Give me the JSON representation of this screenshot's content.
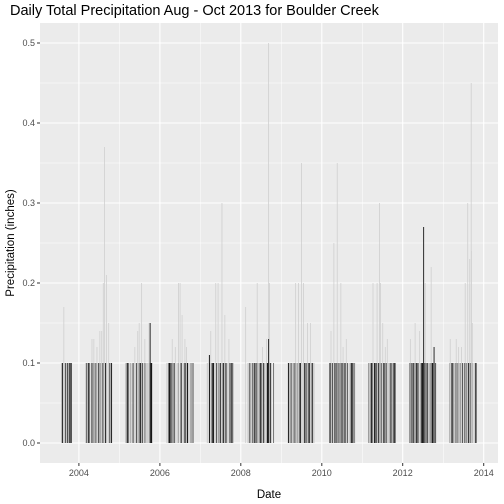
{
  "chart_data": {
    "type": "bar",
    "title": "Daily Total Precipitation Aug - Oct 2013 for Boulder Creek",
    "xlabel": "Date",
    "ylabel": "Precipitation (inches)",
    "xlim": [
      "2003-01-15",
      "2014-05-10"
    ],
    "ylim": [
      -0.025,
      0.525
    ],
    "x_ticks": [
      "2004",
      "2006",
      "2008",
      "2010",
      "2012",
      "2014"
    ],
    "y_ticks": [
      "0.0",
      "0.1",
      "0.2",
      "0.3",
      "0.4",
      "0.5"
    ],
    "grid": true,
    "legend": "none",
    "colors": {
      "panel": "#ebebeb",
      "grid_major": "#ffffff",
      "bar_dark": "#1a1a1a",
      "bar_light": "#cfcfcf"
    },
    "x": [
      "2003-08-18",
      "2003-08-25",
      "2003-09-10",
      "2004-03-20",
      "2004-04-28",
      "2004-05-15",
      "2004-06-12",
      "2004-07-08",
      "2004-07-25",
      "2004-08-08",
      "2004-08-20",
      "2004-09-05",
      "2004-09-26",
      "2004-10-08",
      "2005-04-12",
      "2005-05-20",
      "2005-06-15",
      "2005-06-28",
      "2005-07-20",
      "2005-08-18",
      "2005-09-08",
      "2005-09-25",
      "2005-10-02",
      "2006-03-15",
      "2006-04-22",
      "2006-05-20",
      "2006-06-18",
      "2006-07-02",
      "2006-07-20",
      "2006-08-15",
      "2006-08-28",
      "2006-09-18",
      "2007-03-18",
      "2007-04-05",
      "2007-05-20",
      "2007-06-10",
      "2007-07-15",
      "2007-08-10",
      "2007-08-22",
      "2007-09-16",
      "2008-02-14",
      "2008-03-12",
      "2008-04-25",
      "2008-05-28",
      "2008-06-10",
      "2008-07-15",
      "2008-08-20",
      "2008-09-08",
      "2008-09-15",
      "2008-10-02",
      "2009-05-10",
      "2009-06-05",
      "2009-07-02",
      "2009-07-20",
      "2009-08-25",
      "2009-09-20",
      "2010-03-25",
      "2010-04-20",
      "2010-05-20",
      "2010-06-22",
      "2010-07-12",
      "2010-08-10",
      "2010-09-15",
      "2011-04-08",
      "2011-05-15",
      "2011-06-05",
      "2011-06-15",
      "2011-07-05",
      "2011-07-28",
      "2011-08-15",
      "2011-09-02",
      "2012-03-10",
      "2012-04-22",
      "2012-06-02",
      "2012-07-08",
      "2012-07-22",
      "2012-09-14",
      "2012-10-12",
      "2013-03-05",
      "2013-04-28",
      "2013-05-20",
      "2013-06-15",
      "2013-07-18",
      "2013-08-10",
      "2013-08-28",
      "2013-09-10",
      "2013-09-12",
      "2013-09-20",
      "2013-10-10"
    ],
    "values": [
      0.17,
      0.1,
      0.1,
      0.1,
      0.13,
      0.13,
      0.12,
      0.14,
      0.14,
      0.2,
      0.37,
      0.21,
      0.15,
      0.1,
      0.1,
      0.12,
      0.14,
      0.15,
      0.2,
      0.13,
      0.1,
      0.15,
      0.1,
      0.1,
      0.13,
      0.12,
      0.2,
      0.2,
      0.16,
      0.13,
      0.12,
      0.1,
      0.11,
      0.14,
      0.2,
      0.2,
      0.3,
      0.16,
      0.1,
      0.13,
      0.17,
      0.1,
      0.1,
      0.2,
      0.1,
      0.12,
      0.13,
      0.5,
      0.2,
      0.1,
      0.2,
      0.2,
      0.35,
      0.2,
      0.15,
      0.15,
      0.14,
      0.25,
      0.35,
      0.2,
      0.12,
      0.13,
      0.1,
      0.2,
      0.2,
      0.3,
      0.2,
      0.15,
      0.12,
      0.13,
      0.1,
      0.13,
      0.15,
      0.14,
      0.27,
      0.2,
      0.22,
      0.12,
      0.13,
      0.13,
      0.12,
      0.12,
      0.2,
      0.3,
      0.23,
      0.45,
      0.24,
      0.15,
      0.1
    ],
    "dark_x": [
      "2005-10-05",
      "2007-03-25",
      "2008-09-08",
      "2012-07-08",
      "2012-10-10"
    ],
    "dark_values": [
      0.15,
      0.11,
      0.13,
      0.27,
      0.12
    ],
    "baseline_days_value": 0.1
  }
}
